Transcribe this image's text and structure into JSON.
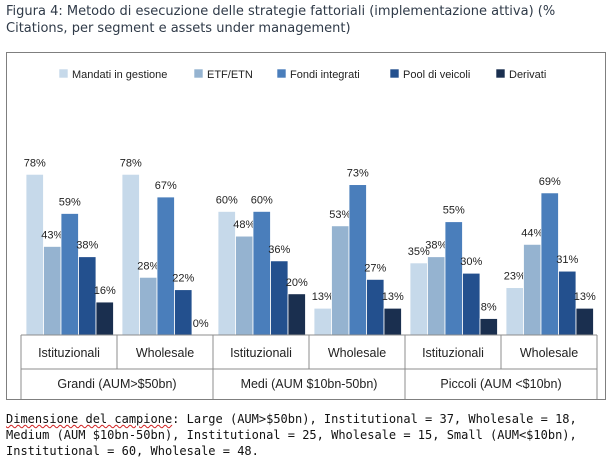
{
  "figure_title": "Figura 4: Metodo di esecuzione delle strategie fattoriali (implementazione attiva) (% Citations, per segment e assets under management)",
  "note": {
    "lead": "Dimensione del campione",
    "rest": ": Large (AUM>$50bn), Institutional = 37, Wholesale = 18, Medium (AUM $10bn-50bn), Institutional = 25, Wholesale = 15, Small (AUM<$10bn), Institutional = 60, Wholesale = 48."
  },
  "colors": {
    "Mandati in gestione": "#c6d9ea",
    "ETF/ETN": "#95b3d0",
    "Fondi integrati": "#4a7ebb",
    "Pool di veicoli": "#23508e",
    "Derivati": "#1a2f4f"
  },
  "chart_data": {
    "type": "bar",
    "title": "",
    "xlabel": "",
    "ylabel": "",
    "ylim": [
      0,
      100
    ],
    "grid": false,
    "legend_position": "top",
    "groups": [
      {
        "name": "Grandi (AUM>$50bn)",
        "categories": [
          "Istituzionali",
          "Wholesale"
        ]
      },
      {
        "name": "Medi (AUM $10bn-50bn)",
        "categories": [
          "Istituzionali",
          "Wholesale"
        ]
      },
      {
        "name": "Piccoli (AUM <$10bn)",
        "categories": [
          "Istituzionali",
          "Wholesale"
        ]
      }
    ],
    "categories": [
      "Istituzionali",
      "Wholesale",
      "Istituzionali",
      "Wholesale",
      "Istituzionali",
      "Wholesale"
    ],
    "series": [
      {
        "name": "Mandati in gestione",
        "values": [
          78,
          78,
          60,
          13,
          35,
          23
        ]
      },
      {
        "name": "ETF/ETN",
        "values": [
          43,
          28,
          48,
          53,
          38,
          44
        ]
      },
      {
        "name": "Fondi integrati",
        "values": [
          59,
          67,
          60,
          73,
          55,
          69
        ]
      },
      {
        "name": "Pool di veicoli",
        "values": [
          38,
          22,
          36,
          27,
          30,
          31
        ]
      },
      {
        "name": "Derivati",
        "values": [
          16,
          0,
          20,
          13,
          8,
          13
        ]
      }
    ],
    "value_suffix": "%"
  }
}
